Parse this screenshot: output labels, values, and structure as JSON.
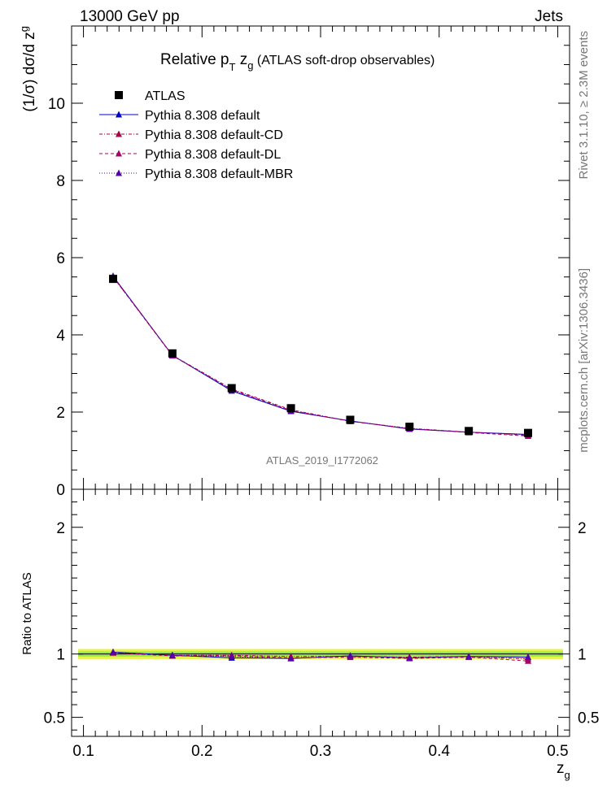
{
  "header": {
    "left": "13000 GeV pp",
    "right": "Jets"
  },
  "title": {
    "main": "Relative p",
    "sub1": "T",
    "mid": " z",
    "sub2": "g",
    "rest": " (ATLAS soft-drop observables)"
  },
  "side_labels": {
    "rivet": "Rivet 3.1.10, ≥ 2.3M events",
    "mcplots": "mcplots.cern.ch [arXiv:1306.3436]"
  },
  "watermark": "ATLAS_2019_I1772062",
  "axes": {
    "ylabel_main": "(1/σ) dσ/d z",
    "ylabel_main_sub": "g",
    "ylabel_ratio": "Ratio to ATLAS",
    "xlabel": "z",
    "xlabel_sub": "g"
  },
  "legend": [
    {
      "label": "ATLAS",
      "marker": "square",
      "color": "#000000",
      "dash": ""
    },
    {
      "label": "Pythia 8.308 default",
      "marker": "triangle",
      "color": "#0000cc",
      "dash": ""
    },
    {
      "label": "Pythia 8.308 default-CD",
      "marker": "triangle",
      "color": "#aa0044",
      "dash": "4,2,1,2"
    },
    {
      "label": "Pythia 8.308 default-DL",
      "marker": "triangle",
      "color": "#aa0066",
      "dash": "4,3"
    },
    {
      "label": "Pythia 8.308 default-MBR",
      "marker": "triangle",
      "color": "#5500aa",
      "dash": "1,2"
    }
  ],
  "chart_data": {
    "type": "line",
    "title": "Relative p_T z_g (ATLAS soft-drop observables)",
    "xlabel": "z_g",
    "ylabel": "(1/σ) dσ/d z_g",
    "xlim": [
      0.09,
      0.51
    ],
    "ylim": [
      0,
      12
    ],
    "ratio_ylim": [
      0.35,
      2.3
    ],
    "x_ticks": [
      0.1,
      0.2,
      0.3,
      0.4,
      0.5
    ],
    "y_ticks": [
      0,
      2,
      4,
      6,
      8,
      10
    ],
    "ratio_ticks": [
      0.5,
      1,
      2
    ],
    "x": [
      0.125,
      0.175,
      0.225,
      0.275,
      0.325,
      0.375,
      0.425,
      0.475
    ],
    "data": {
      "name": "ATLAS",
      "values": [
        5.45,
        3.52,
        2.62,
        2.1,
        1.8,
        1.62,
        1.51,
        1.46
      ]
    },
    "series": [
      {
        "name": "Pythia 8.308 default",
        "values": [
          5.52,
          3.47,
          2.55,
          2.02,
          1.77,
          1.56,
          1.48,
          1.42
        ]
      },
      {
        "name": "Pythia 8.308 default-CD",
        "values": [
          5.5,
          3.47,
          2.6,
          2.06,
          1.76,
          1.58,
          1.48,
          1.4
        ]
      },
      {
        "name": "Pythia 8.308 default-DL",
        "values": [
          5.5,
          3.46,
          2.58,
          2.04,
          1.76,
          1.57,
          1.47,
          1.38
        ]
      },
      {
        "name": "Pythia 8.308 default-MBR",
        "values": [
          5.52,
          3.47,
          2.57,
          2.03,
          1.77,
          1.57,
          1.48,
          1.42
        ]
      }
    ],
    "ratio": [
      {
        "name": "Pythia 8.308 default",
        "values": [
          1.015,
          0.99,
          0.97,
          0.965,
          0.985,
          0.97,
          0.98,
          0.975
        ]
      },
      {
        "name": "Pythia 8.308 default-CD",
        "values": [
          1.01,
          0.99,
          0.99,
          0.98,
          0.98,
          0.975,
          0.98,
          0.96
        ]
      },
      {
        "name": "Pythia 8.308 default-DL",
        "values": [
          1.01,
          0.985,
          0.985,
          0.97,
          0.975,
          0.965,
          0.975,
          0.945
        ]
      },
      {
        "name": "Pythia 8.308 default-MBR",
        "values": [
          1.015,
          0.99,
          0.98,
          0.965,
          0.985,
          0.97,
          0.98,
          0.975
        ]
      }
    ],
    "data_uncertainty_band": [
      0.98,
      1.02
    ]
  }
}
